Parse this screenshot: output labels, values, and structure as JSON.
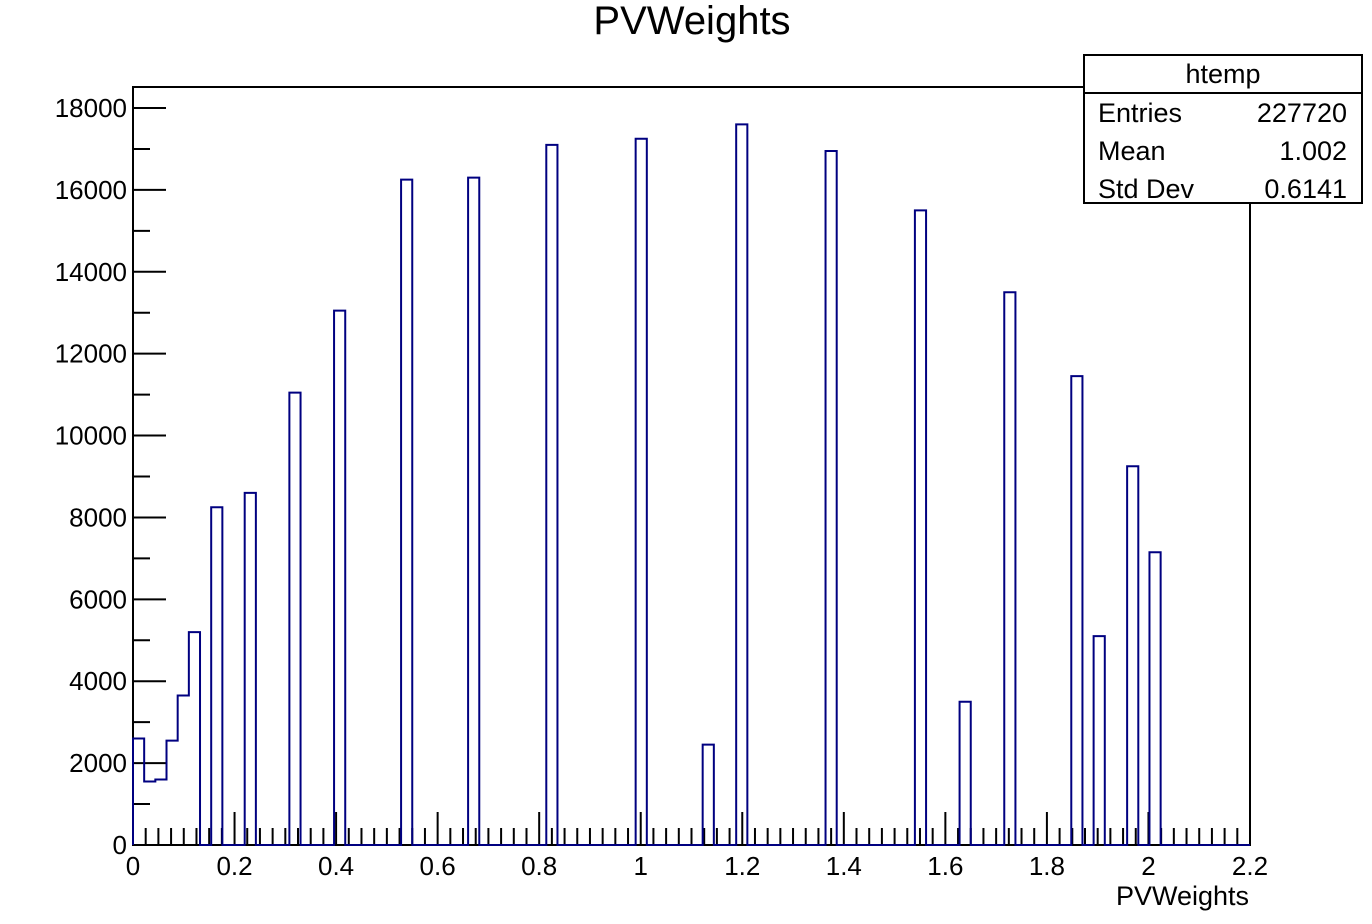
{
  "chart_data": {
    "type": "bar",
    "title": "PVWeights",
    "xlabel": "PVWeights",
    "ylabel": "",
    "xlim": [
      0,
      2.2
    ],
    "ylim": [
      0,
      18000
    ],
    "x_ticks": [
      "0",
      "0.2",
      "0.4",
      "0.6",
      "0.8",
      "1",
      "1.2",
      "1.4",
      "1.6",
      "1.8",
      "2",
      "2.2"
    ],
    "y_ticks": [
      "0",
      "2000",
      "4000",
      "6000",
      "8000",
      "10000",
      "12000",
      "14000",
      "16000",
      "18000"
    ],
    "bin_width": 0.022,
    "bins": [
      {
        "x": 0.0,
        "value": 2600
      },
      {
        "x": 0.022,
        "value": 1550
      },
      {
        "x": 0.044,
        "value": 1600
      },
      {
        "x": 0.066,
        "value": 2550
      },
      {
        "x": 0.088,
        "value": 3650
      },
      {
        "x": 0.11,
        "value": 5200
      },
      {
        "x": 0.154,
        "value": 8250
      },
      {
        "x": 0.22,
        "value": 8600
      },
      {
        "x": 0.308,
        "value": 11050
      },
      {
        "x": 0.396,
        "value": 13050
      },
      {
        "x": 0.528,
        "value": 16250
      },
      {
        "x": 0.66,
        "value": 16300
      },
      {
        "x": 0.814,
        "value": 17100
      },
      {
        "x": 0.99,
        "value": 17250
      },
      {
        "x": 1.122,
        "value": 2450
      },
      {
        "x": 1.188,
        "value": 17600
      },
      {
        "x": 1.364,
        "value": 16950
      },
      {
        "x": 1.54,
        "value": 15500
      },
      {
        "x": 1.628,
        "value": 3500
      },
      {
        "x": 1.716,
        "value": 13500
      },
      {
        "x": 1.848,
        "value": 11450
      },
      {
        "x": 1.892,
        "value": 5100
      },
      {
        "x": 1.958,
        "value": 9250
      },
      {
        "x": 2.002,
        "value": 7150
      }
    ],
    "colors": {
      "line": "#000080",
      "axis": "#000000"
    },
    "grid": false,
    "legend": "none"
  },
  "stats": {
    "title": "htemp",
    "rows": [
      {
        "label": "Entries",
        "value": "227720"
      },
      {
        "label": "Mean",
        "value": "1.002"
      },
      {
        "label": "Std Dev",
        "value": "0.6141"
      }
    ],
    "placement": "top-right"
  }
}
